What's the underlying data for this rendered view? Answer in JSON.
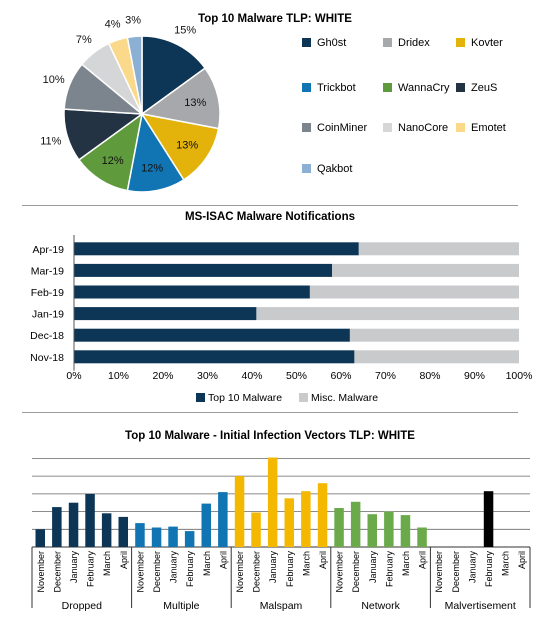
{
  "chart_data": [
    {
      "type": "pie",
      "title": "Top 10 Malware TLP: WHITE",
      "slices": [
        {
          "label": "Gh0st",
          "value": 15,
          "display": "15%",
          "color": "#0d3656"
        },
        {
          "label": "Dridex",
          "value": 13,
          "display": "13%",
          "color": "#a6a8ab"
        },
        {
          "label": "Kovter",
          "value": 13,
          "display": "13%",
          "color": "#e3b30c"
        },
        {
          "label": "Trickbot",
          "value": 12,
          "display": "12%",
          "color": "#1175b4"
        },
        {
          "label": "WannaCry",
          "value": 12,
          "display": "12%",
          "color": "#5f9b3d"
        },
        {
          "label": "ZeuS",
          "value": 11,
          "display": "11%",
          "color": "#233344"
        },
        {
          "label": "CoinMiner",
          "value": 10,
          "display": "10%",
          "color": "#7c858d"
        },
        {
          "label": "NanoCore",
          "value": 7,
          "display": "7%",
          "color": "#d4d6d8"
        },
        {
          "label": "Emotet",
          "value": 4,
          "display": "4%",
          "color": "#fbd98b"
        },
        {
          "label": "Qakbot",
          "value": 3,
          "display": "3%",
          "color": "#8bb0d3"
        }
      ],
      "legend_position": "right"
    },
    {
      "type": "bar",
      "orientation": "horizontal",
      "stacked": true,
      "title": "MS-ISAC Malware Notifications",
      "categories": [
        "Apr-19",
        "Mar-19",
        "Feb-19",
        "Jan-19",
        "Dec-18",
        "Nov-18"
      ],
      "series": [
        {
          "name": "Top 10 Malware",
          "color": "#0d3656",
          "values": [
            64,
            58,
            53,
            41,
            62,
            63
          ]
        },
        {
          "name": "Misc. Malware",
          "color": "#c8cacc",
          "values": [
            36,
            42,
            47,
            59,
            38,
            37
          ]
        }
      ],
      "x_ticks": [
        "0%",
        "10%",
        "20%",
        "30%",
        "40%",
        "50%",
        "60%",
        "70%",
        "80%",
        "90%",
        "100%"
      ],
      "xlim": [
        0,
        100
      ],
      "legend_position": "bottom"
    },
    {
      "type": "bar",
      "title": "Top 10 Malware - Initial Infection Vectors TLP: WHITE",
      "months": [
        "November",
        "December",
        "January",
        "February",
        "March",
        "April"
      ],
      "groups": [
        {
          "name": "Dropped",
          "color": "#0d3656",
          "values": [
            2,
            4.5,
            5,
            6,
            3.8,
            3.4
          ]
        },
        {
          "name": "Multiple",
          "color": "#1175b4",
          "values": [
            2.7,
            2.2,
            2.3,
            1.8,
            4.9,
            6.2
          ]
        },
        {
          "name": "Malspam",
          "color": "#f5b800",
          "values": [
            8,
            3.9,
            10.1,
            5.5,
            6.3,
            7.2
          ]
        },
        {
          "name": "Network",
          "color": "#6aaa4b",
          "values": [
            4.4,
            5.1,
            3.7,
            4,
            3.6,
            2.2
          ]
        },
        {
          "name": "Malvertisement",
          "color": "#000000",
          "values": [
            0,
            0,
            0,
            6.3,
            0,
            0
          ]
        }
      ],
      "ylim": [
        0,
        10.5
      ],
      "grid": true
    }
  ]
}
